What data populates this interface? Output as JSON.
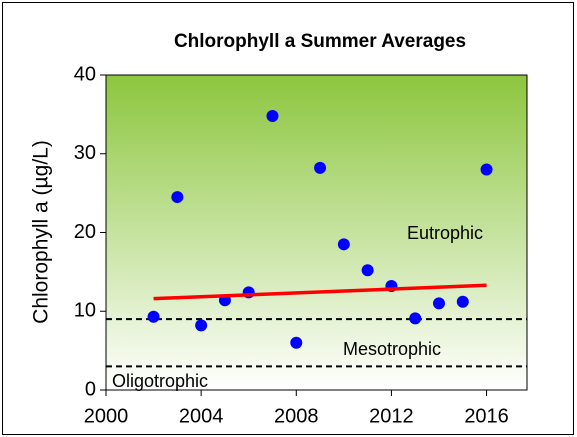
{
  "chart_data": {
    "type": "scatter",
    "title": "Chlorophyll a Summer Averages",
    "y_label": "Chlorophyll a (µg/L)",
    "x": [
      2002,
      2003,
      2004,
      2005,
      2006,
      2007,
      2008,
      2009,
      2010,
      2011,
      2012,
      2013,
      2014,
      2015,
      2016
    ],
    "series": [
      {
        "color": "#0000ff",
        "values": [
          9.3,
          24.5,
          8.2,
          11.4,
          12.4,
          34.8,
          6.0,
          28.2,
          18.5,
          15.2,
          13.2,
          9.1,
          11.0,
          11.2,
          28.0
        ]
      }
    ],
    "trend": {
      "color": "#ff0000",
      "x": [
        2002,
        2016
      ],
      "values": [
        11.6,
        13.3
      ]
    },
    "thresholds": [
      9,
      3
    ],
    "annotations": [
      "Eutrophic",
      "Mesotrophic",
      "Oligotrophic"
    ],
    "xlim": [
      2000,
      2017.7
    ],
    "xticks": [
      2000,
      2004,
      2008,
      2012,
      2016
    ],
    "ylim": [
      0,
      40
    ],
    "yticks": [
      0,
      10,
      20,
      30,
      40
    ]
  }
}
